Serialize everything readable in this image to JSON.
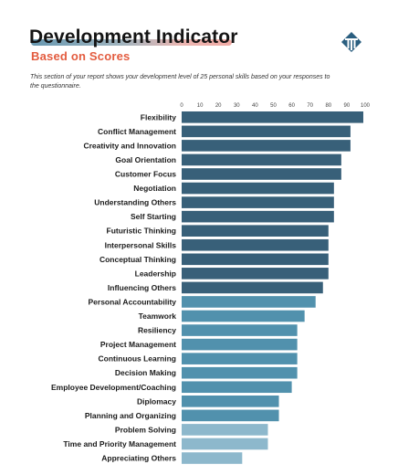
{
  "header": {
    "title": "Development Indicator",
    "subtitle": "Based on Scores",
    "intro": "This section of your report shows your development level of 25 personal skills based on your responses to the questionnaire."
  },
  "colors": {
    "dark_bar": "#386079",
    "mid_bar": "#5191ad",
    "light_bar": "#8db8cc",
    "subtitle": "#e35c3f",
    "logo": "#2b5f80"
  },
  "chart_data": {
    "type": "bar",
    "orientation": "horizontal",
    "title": "",
    "xlabel": "",
    "ylabel": "",
    "xlim": [
      0,
      100
    ],
    "xticks": [
      0,
      10,
      20,
      30,
      40,
      50,
      60,
      70,
      80,
      90,
      100
    ],
    "grid": false,
    "legend": "none",
    "categories": [
      "Flexibility",
      "Conflict Management",
      "Creativity and Innovation",
      "Goal Orientation",
      "Customer Focus",
      "Negotiation",
      "Understanding Others",
      "Self Starting",
      "Futuristic Thinking",
      "Interpersonal Skills",
      "Conceptual Thinking",
      "Leadership",
      "Influencing Others",
      "Personal Accountability",
      "Teamwork",
      "Resiliency",
      "Project Management",
      "Continuous Learning",
      "Decision Making",
      "Employee Development/Coaching",
      "Diplomacy",
      "Planning and Organizing",
      "Problem Solving",
      "Time and Priority Management",
      "Appreciating Others"
    ],
    "values": [
      99,
      92,
      92,
      87,
      87,
      83,
      83,
      83,
      80,
      80,
      80,
      80,
      77,
      73,
      67,
      63,
      63,
      63,
      63,
      60,
      53,
      53,
      47,
      47,
      33
    ]
  }
}
